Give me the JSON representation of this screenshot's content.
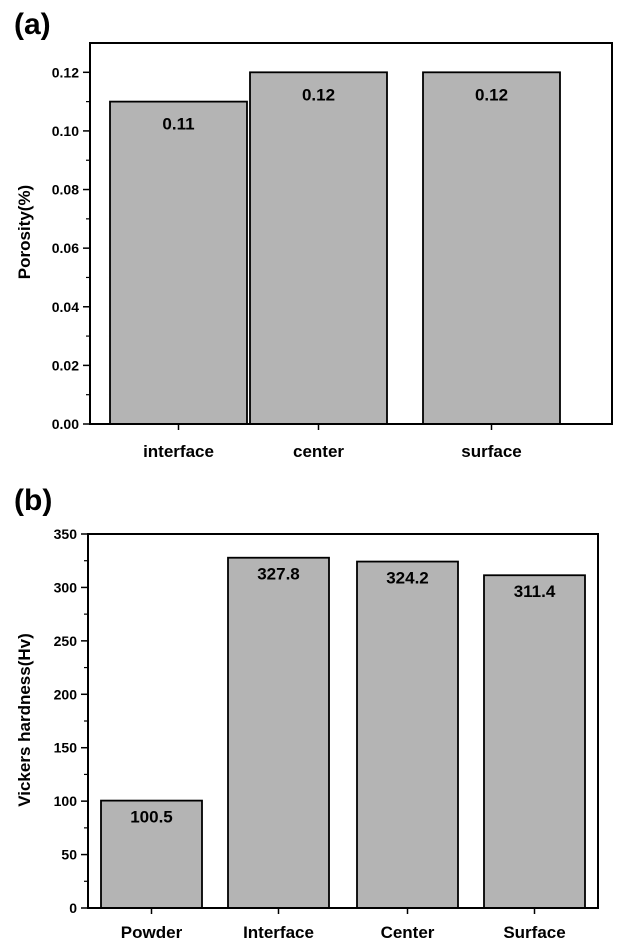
{
  "chart_data": [
    {
      "panel": "(a)",
      "type": "bar",
      "categories": [
        "interface",
        "center",
        "surface"
      ],
      "values": [
        0.11,
        0.12,
        0.12
      ],
      "data_labels": [
        "0.11",
        "0.12",
        "0.12"
      ],
      "ylabel": "Porosity(%)",
      "ylim": [
        0,
        0.13
      ],
      "yticks": [
        0.0,
        0.02,
        0.04,
        0.06,
        0.08,
        0.1,
        0.12
      ],
      "ytick_labels": [
        "0.00",
        "0.02",
        "0.04",
        "0.06",
        "0.08",
        "0.10",
        "0.12"
      ],
      "bar_color": "#b4b4b4",
      "grid": false
    },
    {
      "panel": "(b)",
      "type": "bar",
      "categories": [
        "Powder",
        "Interface",
        "Center",
        "Surface"
      ],
      "values": [
        100.5,
        327.8,
        324.2,
        311.4
      ],
      "data_labels": [
        "100.5",
        "327.8",
        "324.2",
        "311.4"
      ],
      "ylabel": "Vickers hardness(Hv)",
      "ylim": [
        0,
        350
      ],
      "yticks": [
        0,
        50,
        100,
        150,
        200,
        250,
        300,
        350
      ],
      "ytick_labels": [
        "0",
        "50",
        "100",
        "150",
        "200",
        "250",
        "300",
        "350"
      ],
      "bar_color": "#b4b4b4",
      "grid": false
    }
  ]
}
